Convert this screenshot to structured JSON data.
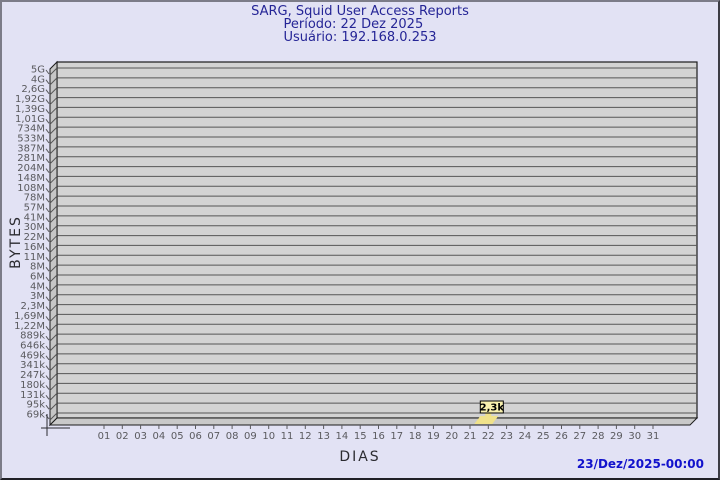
{
  "footer": {
    "timestamp": "23/Dez/2025-00:00"
  },
  "chart_data": {
    "type": "bar",
    "title": "SARG, Squid User Access Reports",
    "subtitle_period": "Período: 22 Dez 2025",
    "subtitle_user": "Usuário: 192.168.0.253",
    "xlabel": "DIAS",
    "ylabel": "BYTES",
    "y_scale": "log",
    "ylim_bytes": [
      69000,
      5000000000
    ],
    "grid": "horizontal",
    "x_tick_labels": [
      "01",
      "02",
      "03",
      "04",
      "05",
      "06",
      "07",
      "08",
      "09",
      "10",
      "11",
      "12",
      "13",
      "14",
      "15",
      "16",
      "17",
      "18",
      "19",
      "20",
      "21",
      "22",
      "23",
      "24",
      "25",
      "26",
      "27",
      "28",
      "29",
      "30",
      "31"
    ],
    "y_tick_labels": [
      "5G",
      "4G",
      "2,6G",
      "1,92G",
      "1,39G",
      "1,01G",
      "734M",
      "533M",
      "387M",
      "281M",
      "204M",
      "148M",
      "108M",
      "78M",
      "57M",
      "41M",
      "30M",
      "22M",
      "16M",
      "11M",
      "8M",
      "6M",
      "4M",
      "3M",
      "2,3M",
      "1,69M",
      "1,22M",
      "889k",
      "646k",
      "469k",
      "341k",
      "247k",
      "180k",
      "131k",
      "95k",
      "69k"
    ],
    "bars": [
      {
        "day": "22",
        "value_label": "2,3k",
        "value_bytes": 2300
      }
    ],
    "colors": {
      "background": "#e2e2f4",
      "plot_bg": "#d3d3d3",
      "wall": "#c6c6c6",
      "floor": "#c9c9c9",
      "gridline": "#565656",
      "outline": "#1c1c1c",
      "tick_text": "#5a5a5e",
      "axis_text": "#2b2b30",
      "title_text": "#252596",
      "timestamp_text": "#1212cc",
      "bar_fill": "#f0e28b",
      "bar_label_bg": "#f8f0ae",
      "bar_label_border": "#000000"
    }
  }
}
